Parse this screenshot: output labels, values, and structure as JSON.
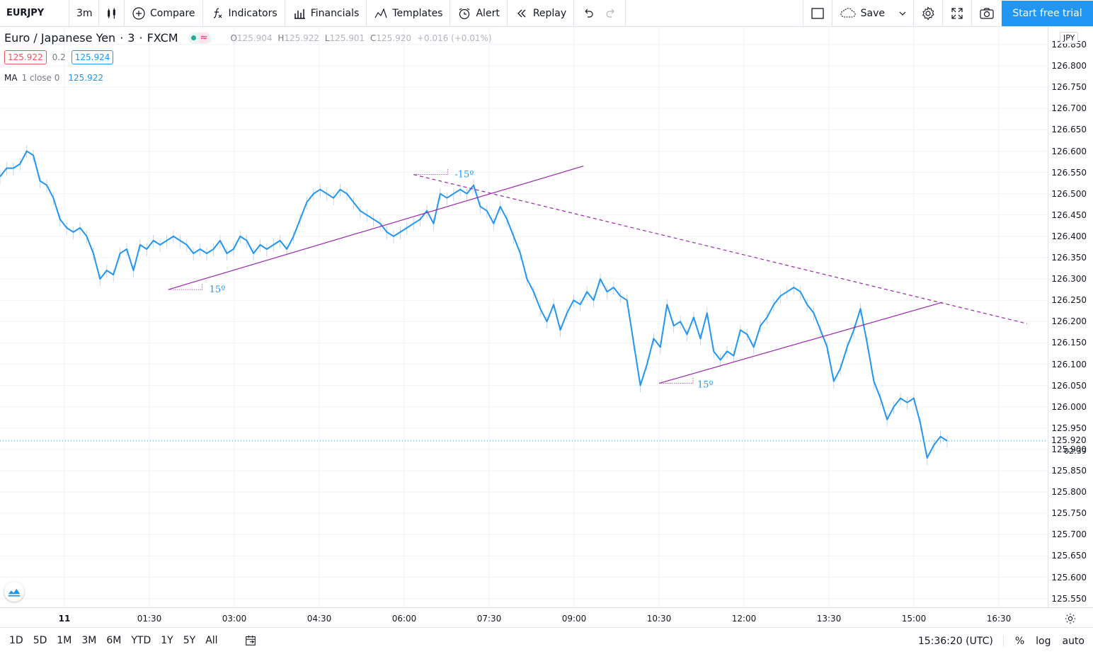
{
  "toolbar": {
    "symbol": "EURJPY",
    "interval": "3m",
    "compare": "Compare",
    "indicators": "Indicators",
    "financials": "Financials",
    "templates": "Templates",
    "alert": "Alert",
    "replay": "Replay",
    "save": "Save",
    "trial": "Start free trial"
  },
  "legend": {
    "title": "Euro / Japanese Yen",
    "interval": "3",
    "exchange": "FXCM",
    "o_label": "O",
    "o": "125.904",
    "h_label": "H",
    "h": "125.922",
    "l_label": "L",
    "l": "125.901",
    "c_label": "C",
    "c": "125.920",
    "change": "+0.016 (+0.01%)"
  },
  "quote": {
    "bid": "125.922",
    "spread": "0.2",
    "ask": "125.924"
  },
  "ma": {
    "name": "MA",
    "params": "1 close 0",
    "value": "125.922"
  },
  "currency": "JPY",
  "current_price": "125.920",
  "countdown": "02:39",
  "drawings": {
    "angle_1": "15º",
    "angle_2": "-15º",
    "angle_3": "15º"
  },
  "bottom": {
    "ranges": [
      "1D",
      "5D",
      "1M",
      "3M",
      "6M",
      "YTD",
      "1Y",
      "5Y",
      "All"
    ],
    "time": "15:36:20 (UTC)",
    "percent": "%",
    "log": "log",
    "auto": "auto"
  },
  "colors": {
    "line": "#2196f3",
    "trend": "#9c27b0",
    "accent": "#2196f3",
    "bid": "#ef5350"
  },
  "chart_data": {
    "type": "line",
    "series": [
      {
        "values": [
          126.54,
          126.56,
          126.56,
          126.57,
          126.6,
          126.59,
          126.53,
          126.52,
          126.49,
          126.44,
          126.42,
          126.41,
          126.42,
          126.4,
          126.36,
          126.3,
          126.32,
          126.31,
          126.36,
          126.37,
          126.32,
          126.38,
          126.37,
          126.39,
          126.38,
          126.39,
          126.4,
          126.39,
          126.38,
          126.36,
          126.37,
          126.36,
          126.37,
          126.39,
          126.36,
          126.37,
          126.4,
          126.39,
          126.36,
          126.38,
          126.37,
          126.38,
          126.39,
          126.37,
          126.4,
          126.44,
          126.48,
          126.5,
          126.51,
          126.5,
          126.49,
          126.51,
          126.5,
          126.48,
          126.46,
          126.45,
          126.44,
          126.43,
          126.41,
          126.4,
          126.41,
          126.42,
          126.43,
          126.44,
          126.46,
          126.43,
          126.5,
          126.49,
          126.5,
          126.51,
          126.5,
          126.52,
          126.47,
          126.46,
          126.43,
          126.47,
          126.44,
          126.4,
          126.36,
          126.3,
          126.27,
          126.23,
          126.2,
          126.24,
          126.18,
          126.22,
          126.25,
          126.24,
          126.27,
          126.25,
          126.3,
          126.27,
          126.28,
          126.26,
          126.25,
          126.15,
          126.05,
          126.1,
          126.16,
          126.14,
          126.24,
          126.19,
          126.2,
          126.17,
          126.21,
          126.16,
          126.22,
          126.13,
          126.11,
          126.13,
          126.12,
          126.18,
          126.17,
          126.14,
          126.19,
          126.21,
          126.24,
          126.26,
          126.27,
          126.28,
          126.27,
          126.24,
          126.22,
          126.18,
          126.14,
          126.06,
          126.09,
          126.14,
          126.18,
          126.23,
          126.15,
          126.06,
          126.02,
          125.97,
          126.0,
          126.02,
          126.01,
          126.02,
          125.96,
          125.88,
          125.91,
          125.93,
          125.92
        ],
        "x_start": "00:00",
        "interval_minutes": 7.6
      }
    ],
    "y_ticks": [
      "126.850",
      "126.800",
      "126.750",
      "126.700",
      "126.650",
      "126.600",
      "126.550",
      "126.500",
      "126.450",
      "126.400",
      "126.350",
      "126.300",
      "126.250",
      "126.200",
      "126.150",
      "126.100",
      "126.050",
      "126.000",
      "125.950",
      "125.900",
      "125.850",
      "125.800",
      "125.750",
      "125.700",
      "125.650",
      "125.600",
      "125.550"
    ],
    "x_ticks": [
      "11",
      "01:30",
      "03:00",
      "04:30",
      "06:00",
      "07:30",
      "09:00",
      "10:30",
      "12:00",
      "13:30",
      "15:00",
      "16:30"
    ],
    "ylim": [
      125.53,
      126.86
    ],
    "grid": true,
    "trendlines": [
      {
        "from": [
          "01:50",
          126.275
        ],
        "to": [
          "09:10",
          126.565
        ],
        "style": "solid"
      },
      {
        "from": [
          "06:10",
          126.545
        ],
        "to": [
          "17:00",
          126.195
        ],
        "style": "dashed"
      },
      {
        "from": [
          "10:30",
          126.055
        ],
        "to": [
          "15:30",
          126.245
        ],
        "style": "solid"
      }
    ]
  }
}
